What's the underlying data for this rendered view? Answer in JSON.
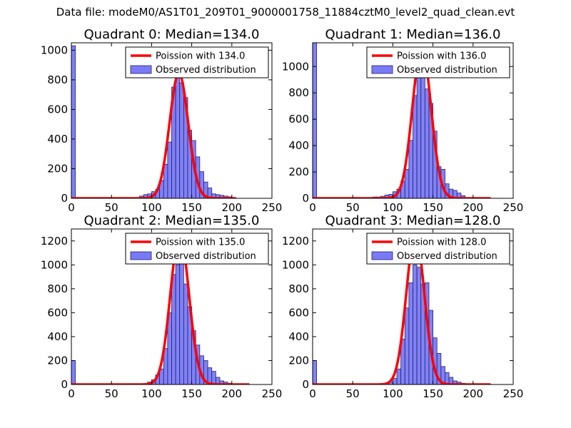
{
  "figure_title": "Data file: modeM0/AS1T01_209T01_9000001758_11884cztM0_level2_quad_clean.evt",
  "colors": {
    "bars": "#7a7af7",
    "bar_edge": "#22226e",
    "curve": "#ff0000",
    "axes": "#000000"
  },
  "chart_data": [
    {
      "type": "bar",
      "title": "Quadrant 0: Median=134.0",
      "xlabel": "",
      "ylabel": "",
      "xlim": [
        0,
        250
      ],
      "ylim": [
        0,
        1050
      ],
      "xticks": [
        0,
        50,
        100,
        150,
        200,
        250
      ],
      "yticks": [
        0,
        200,
        400,
        600,
        800,
        1000
      ],
      "legend": {
        "placement": "top-right",
        "line_label": "Poission with 134.0",
        "bar_label": "Observed distribution"
      },
      "bin_width": 5,
      "bins": [
        {
          "x": 0,
          "count": 1030
        },
        {
          "x": 85,
          "count": 15
        },
        {
          "x": 90,
          "count": 25
        },
        {
          "x": 95,
          "count": 30
        },
        {
          "x": 100,
          "count": 45
        },
        {
          "x": 105,
          "count": 60
        },
        {
          "x": 110,
          "count": 120
        },
        {
          "x": 115,
          "count": 230
        },
        {
          "x": 120,
          "count": 380
        },
        {
          "x": 125,
          "count": 750
        },
        {
          "x": 130,
          "count": 850
        },
        {
          "x": 135,
          "count": 780
        },
        {
          "x": 140,
          "count": 680
        },
        {
          "x": 145,
          "count": 460
        },
        {
          "x": 150,
          "count": 390
        },
        {
          "x": 155,
          "count": 280
        },
        {
          "x": 160,
          "count": 180
        },
        {
          "x": 165,
          "count": 110
        },
        {
          "x": 170,
          "count": 70
        },
        {
          "x": 175,
          "count": 30
        },
        {
          "x": 180,
          "count": 25
        },
        {
          "x": 185,
          "count": 20
        },
        {
          "x": 190,
          "count": 15
        },
        {
          "x": 195,
          "count": 10
        },
        {
          "x": 200,
          "count": 5
        }
      ],
      "curve": {
        "mean": 134,
        "peak": 845,
        "x_range": [
          0,
          205
        ]
      }
    },
    {
      "type": "bar",
      "title": "Quadrant 1: Median=136.0",
      "xlabel": "",
      "ylabel": "",
      "xlim": [
        0,
        250
      ],
      "ylim": [
        0,
        1180
      ],
      "xticks": [
        0,
        50,
        100,
        150,
        200,
        250
      ],
      "yticks": [
        0,
        200,
        400,
        600,
        800,
        1000
      ],
      "legend": {
        "placement": "top-right",
        "line_label": "Poission with 136.0",
        "bar_label": "Observed distribution"
      },
      "bin_width": 5,
      "bins": [
        {
          "x": 0,
          "count": 1180
        },
        {
          "x": 65,
          "count": 5
        },
        {
          "x": 70,
          "count": 5
        },
        {
          "x": 75,
          "count": 10
        },
        {
          "x": 80,
          "count": 10
        },
        {
          "x": 85,
          "count": 15
        },
        {
          "x": 90,
          "count": 25
        },
        {
          "x": 95,
          "count": 30
        },
        {
          "x": 100,
          "count": 50
        },
        {
          "x": 105,
          "count": 70
        },
        {
          "x": 110,
          "count": 130
        },
        {
          "x": 115,
          "count": 220
        },
        {
          "x": 120,
          "count": 440
        },
        {
          "x": 125,
          "count": 780
        },
        {
          "x": 130,
          "count": 930
        },
        {
          "x": 135,
          "count": 1010
        },
        {
          "x": 140,
          "count": 830
        },
        {
          "x": 145,
          "count": 720
        },
        {
          "x": 150,
          "count": 510
        },
        {
          "x": 155,
          "count": 240
        },
        {
          "x": 160,
          "count": 220
        },
        {
          "x": 165,
          "count": 110
        },
        {
          "x": 170,
          "count": 70
        },
        {
          "x": 175,
          "count": 60
        },
        {
          "x": 180,
          "count": 40
        },
        {
          "x": 185,
          "count": 20
        },
        {
          "x": 190,
          "count": 5
        }
      ],
      "curve": {
        "mean": 136,
        "peak": 1140,
        "x_range": [
          0,
          222
        ]
      }
    },
    {
      "type": "bar",
      "title": "Quadrant 2: Median=135.0",
      "xlabel": "",
      "ylabel": "",
      "xlim": [
        0,
        250
      ],
      "ylim": [
        0,
        1300
      ],
      "xticks": [
        0,
        50,
        100,
        150,
        200,
        250
      ],
      "yticks": [
        0,
        200,
        400,
        600,
        800,
        1000,
        1200
      ],
      "legend": {
        "placement": "top-right",
        "line_label": "Poission with 135.0",
        "bar_label": "Observed distribution"
      },
      "bin_width": 5,
      "bins": [
        {
          "x": 0,
          "count": 200
        },
        {
          "x": 95,
          "count": 20
        },
        {
          "x": 100,
          "count": 40
        },
        {
          "x": 105,
          "count": 80
        },
        {
          "x": 110,
          "count": 130
        },
        {
          "x": 115,
          "count": 300
        },
        {
          "x": 120,
          "count": 600
        },
        {
          "x": 125,
          "count": 920
        },
        {
          "x": 130,
          "count": 1000
        },
        {
          "x": 135,
          "count": 1100
        },
        {
          "x": 140,
          "count": 840
        },
        {
          "x": 145,
          "count": 650
        },
        {
          "x": 150,
          "count": 450
        },
        {
          "x": 155,
          "count": 330
        },
        {
          "x": 160,
          "count": 240
        },
        {
          "x": 165,
          "count": 200
        },
        {
          "x": 170,
          "count": 140
        },
        {
          "x": 175,
          "count": 110
        },
        {
          "x": 180,
          "count": 60
        },
        {
          "x": 185,
          "count": 30
        },
        {
          "x": 190,
          "count": 20
        },
        {
          "x": 195,
          "count": 10
        }
      ],
      "curve": {
        "mean": 135,
        "peak": 1250,
        "x_range": [
          0,
          222
        ]
      }
    },
    {
      "type": "bar",
      "title": "Quadrant 3: Median=128.0",
      "xlabel": "",
      "ylabel": "",
      "xlim": [
        0,
        250
      ],
      "ylim": [
        0,
        1300
      ],
      "xticks": [
        0,
        50,
        100,
        150,
        200,
        250
      ],
      "yticks": [
        0,
        200,
        400,
        600,
        800,
        1000,
        1200
      ],
      "legend": {
        "placement": "top-right",
        "line_label": "Poission with 128.0",
        "bar_label": "Observed distribution"
      },
      "bin_width": 5,
      "bins": [
        {
          "x": 0,
          "count": 200
        },
        {
          "x": 95,
          "count": 20
        },
        {
          "x": 100,
          "count": 50
        },
        {
          "x": 105,
          "count": 130
        },
        {
          "x": 110,
          "count": 380
        },
        {
          "x": 115,
          "count": 640
        },
        {
          "x": 120,
          "count": 850
        },
        {
          "x": 125,
          "count": 1000
        },
        {
          "x": 130,
          "count": 980
        },
        {
          "x": 135,
          "count": 840
        },
        {
          "x": 140,
          "count": 850
        },
        {
          "x": 145,
          "count": 620
        },
        {
          "x": 150,
          "count": 390
        },
        {
          "x": 155,
          "count": 260
        },
        {
          "x": 160,
          "count": 150
        },
        {
          "x": 165,
          "count": 100
        },
        {
          "x": 170,
          "count": 60
        },
        {
          "x": 175,
          "count": 30
        },
        {
          "x": 180,
          "count": 20
        },
        {
          "x": 185,
          "count": 10
        }
      ],
      "curve": {
        "mean": 128,
        "peak": 1250,
        "x_range": [
          0,
          222
        ]
      }
    }
  ]
}
